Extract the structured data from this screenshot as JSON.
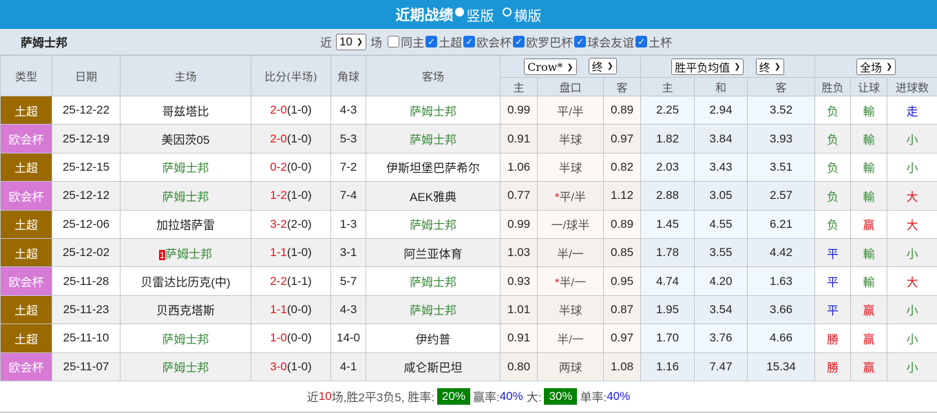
{
  "header": {
    "title": "近期战绩",
    "view_options": [
      {
        "label": "竖版",
        "selected": true
      },
      {
        "label": "横版",
        "selected": false
      }
    ]
  },
  "filter": {
    "team": "萨姆士邦",
    "near_label": "近",
    "count": "10",
    "games_label": "场",
    "checks": [
      {
        "label": "同主",
        "checked": false
      },
      {
        "label": "土超",
        "checked": true
      },
      {
        "label": "欧会杯",
        "checked": true
      },
      {
        "label": "欧罗巴杯",
        "checked": true
      },
      {
        "label": "球会友谊",
        "checked": true
      },
      {
        "label": "土杯",
        "checked": true
      }
    ]
  },
  "columns": {
    "type": "类型",
    "date": "日期",
    "home": "主场",
    "score": "比分(半场)",
    "corners": "角球",
    "away": "客场",
    "odds_company": "Crow*",
    "odds_stage": "终",
    "avg_type": "胜平负均值",
    "avg_stage": "终",
    "period": "全场",
    "sub": [
      "主",
      "盘口",
      "客",
      "主",
      "和",
      "客",
      "胜负",
      "让球",
      "进球数"
    ]
  },
  "colors": {
    "土超": "#9a6a00",
    "欧会杯": "#d67ad6",
    "win": "#e0141e",
    "draw": "#1a1ad6",
    "loss": "#3a8a3a"
  },
  "rows": [
    {
      "type": "土超",
      "date": "25-12-22",
      "home": "哥兹塔比",
      "home_green": false,
      "score": "2-0",
      "half": "(1-0)",
      "corners": "4-3",
      "away": "萨姆士邦",
      "away_green": true,
      "o1": "0.99",
      "hcp": "平/半",
      "star": false,
      "o2": "0.89",
      "a1": "2.25",
      "a2": "2.94",
      "a3": "3.52",
      "res": "负",
      "ah": "輸",
      "ou": "走"
    },
    {
      "type": "欧会杯",
      "date": "25-12-19",
      "home": "美因茨05",
      "home_green": false,
      "score": "2-0",
      "half": "(1-0)",
      "corners": "5-3",
      "away": "萨姆士邦",
      "away_green": true,
      "o1": "0.91",
      "hcp": "半球",
      "star": false,
      "o2": "0.97",
      "a1": "1.82",
      "a2": "3.84",
      "a3": "3.93",
      "res": "负",
      "ah": "輸",
      "ou": "小"
    },
    {
      "type": "土超",
      "date": "25-12-15",
      "home": "萨姆士邦",
      "home_green": true,
      "score": "0-2",
      "half": "(0-0)",
      "corners": "7-2",
      "away": "伊斯坦堡巴萨希尔",
      "away_green": false,
      "o1": "1.06",
      "hcp": "半球",
      "star": false,
      "o2": "0.82",
      "a1": "2.03",
      "a2": "3.43",
      "a3": "3.51",
      "res": "负",
      "ah": "輸",
      "ou": "小"
    },
    {
      "type": "欧会杯",
      "date": "25-12-12",
      "home": "萨姆士邦",
      "home_green": true,
      "score": "1-2",
      "half": "(1-0)",
      "corners": "7-4",
      "away": "AEK雅典",
      "away_green": false,
      "o1": "0.77",
      "hcp": "平/半",
      "star": true,
      "o2": "1.12",
      "a1": "2.88",
      "a2": "3.05",
      "a3": "2.57",
      "res": "负",
      "ah": "輸",
      "ou": "大"
    },
    {
      "type": "土超",
      "date": "25-12-06",
      "home": "加拉塔萨雷",
      "home_green": false,
      "score": "3-2",
      "half": "(2-0)",
      "corners": "1-3",
      "away": "萨姆士邦",
      "away_green": true,
      "o1": "0.99",
      "hcp": "一/球半",
      "star": false,
      "o2": "0.89",
      "a1": "1.45",
      "a2": "4.55",
      "a3": "6.21",
      "res": "负",
      "ah": "赢",
      "ou": "大"
    },
    {
      "type": "土超",
      "date": "25-12-02",
      "home": "萨姆士邦",
      "home_green": true,
      "home_badge": "1",
      "score": "1-1",
      "half": "(1-0)",
      "corners": "3-1",
      "away": "阿兰亚体育",
      "away_green": false,
      "o1": "1.03",
      "hcp": "半/一",
      "star": false,
      "o2": "0.85",
      "a1": "1.78",
      "a2": "3.55",
      "a3": "4.42",
      "res": "平",
      "ah": "輸",
      "ou": "小"
    },
    {
      "type": "欧会杯",
      "date": "25-11-28",
      "home": "贝雷达比历克(中)",
      "home_green": false,
      "score": "2-2",
      "half": "(1-1)",
      "corners": "5-7",
      "away": "萨姆士邦",
      "away_green": true,
      "o1": "0.93",
      "hcp": "半/一",
      "star": true,
      "o2": "0.95",
      "a1": "4.74",
      "a2": "4.20",
      "a3": "1.63",
      "res": "平",
      "ah": "輸",
      "ou": "大"
    },
    {
      "type": "土超",
      "date": "25-11-23",
      "home": "贝西克塔斯",
      "home_green": false,
      "score": "1-1",
      "half": "(0-0)",
      "corners": "4-3",
      "away": "萨姆士邦",
      "away_green": true,
      "o1": "1.01",
      "hcp": "半球",
      "star": false,
      "o2": "0.87",
      "a1": "1.95",
      "a2": "3.54",
      "a3": "3.66",
      "res": "平",
      "ah": "赢",
      "ou": "小"
    },
    {
      "type": "土超",
      "date": "25-11-10",
      "home": "萨姆士邦",
      "home_green": true,
      "score": "1-0",
      "half": "(0-0)",
      "corners": "14-0",
      "away": "伊约普",
      "away_green": false,
      "o1": "0.91",
      "hcp": "半/一",
      "star": false,
      "o2": "0.97",
      "a1": "1.70",
      "a2": "3.76",
      "a3": "4.66",
      "res": "勝",
      "ah": "赢",
      "ou": "小"
    },
    {
      "type": "欧会杯",
      "date": "25-11-07",
      "home": "萨姆士邦",
      "home_green": true,
      "score": "3-0",
      "half": "(1-0)",
      "corners": "4-1",
      "away": "咸仑斯巴坦",
      "away_green": false,
      "o1": "0.80",
      "hcp": "两球",
      "star": false,
      "o2": "1.08",
      "a1": "1.16",
      "a2": "7.47",
      "a3": "15.34",
      "res": "勝",
      "ah": "赢",
      "ou": "小"
    }
  ],
  "summary": {
    "prefix": "近",
    "count": "10",
    "text1": "场,胜2平3负5, 胜率:",
    "win_rate": "20%",
    "ah_label": "赢率:",
    "ah_rate": "40%",
    "over_label": "大:",
    "over_rate": "30%",
    "odd_label": "单率:",
    "odd_rate": "40%"
  }
}
